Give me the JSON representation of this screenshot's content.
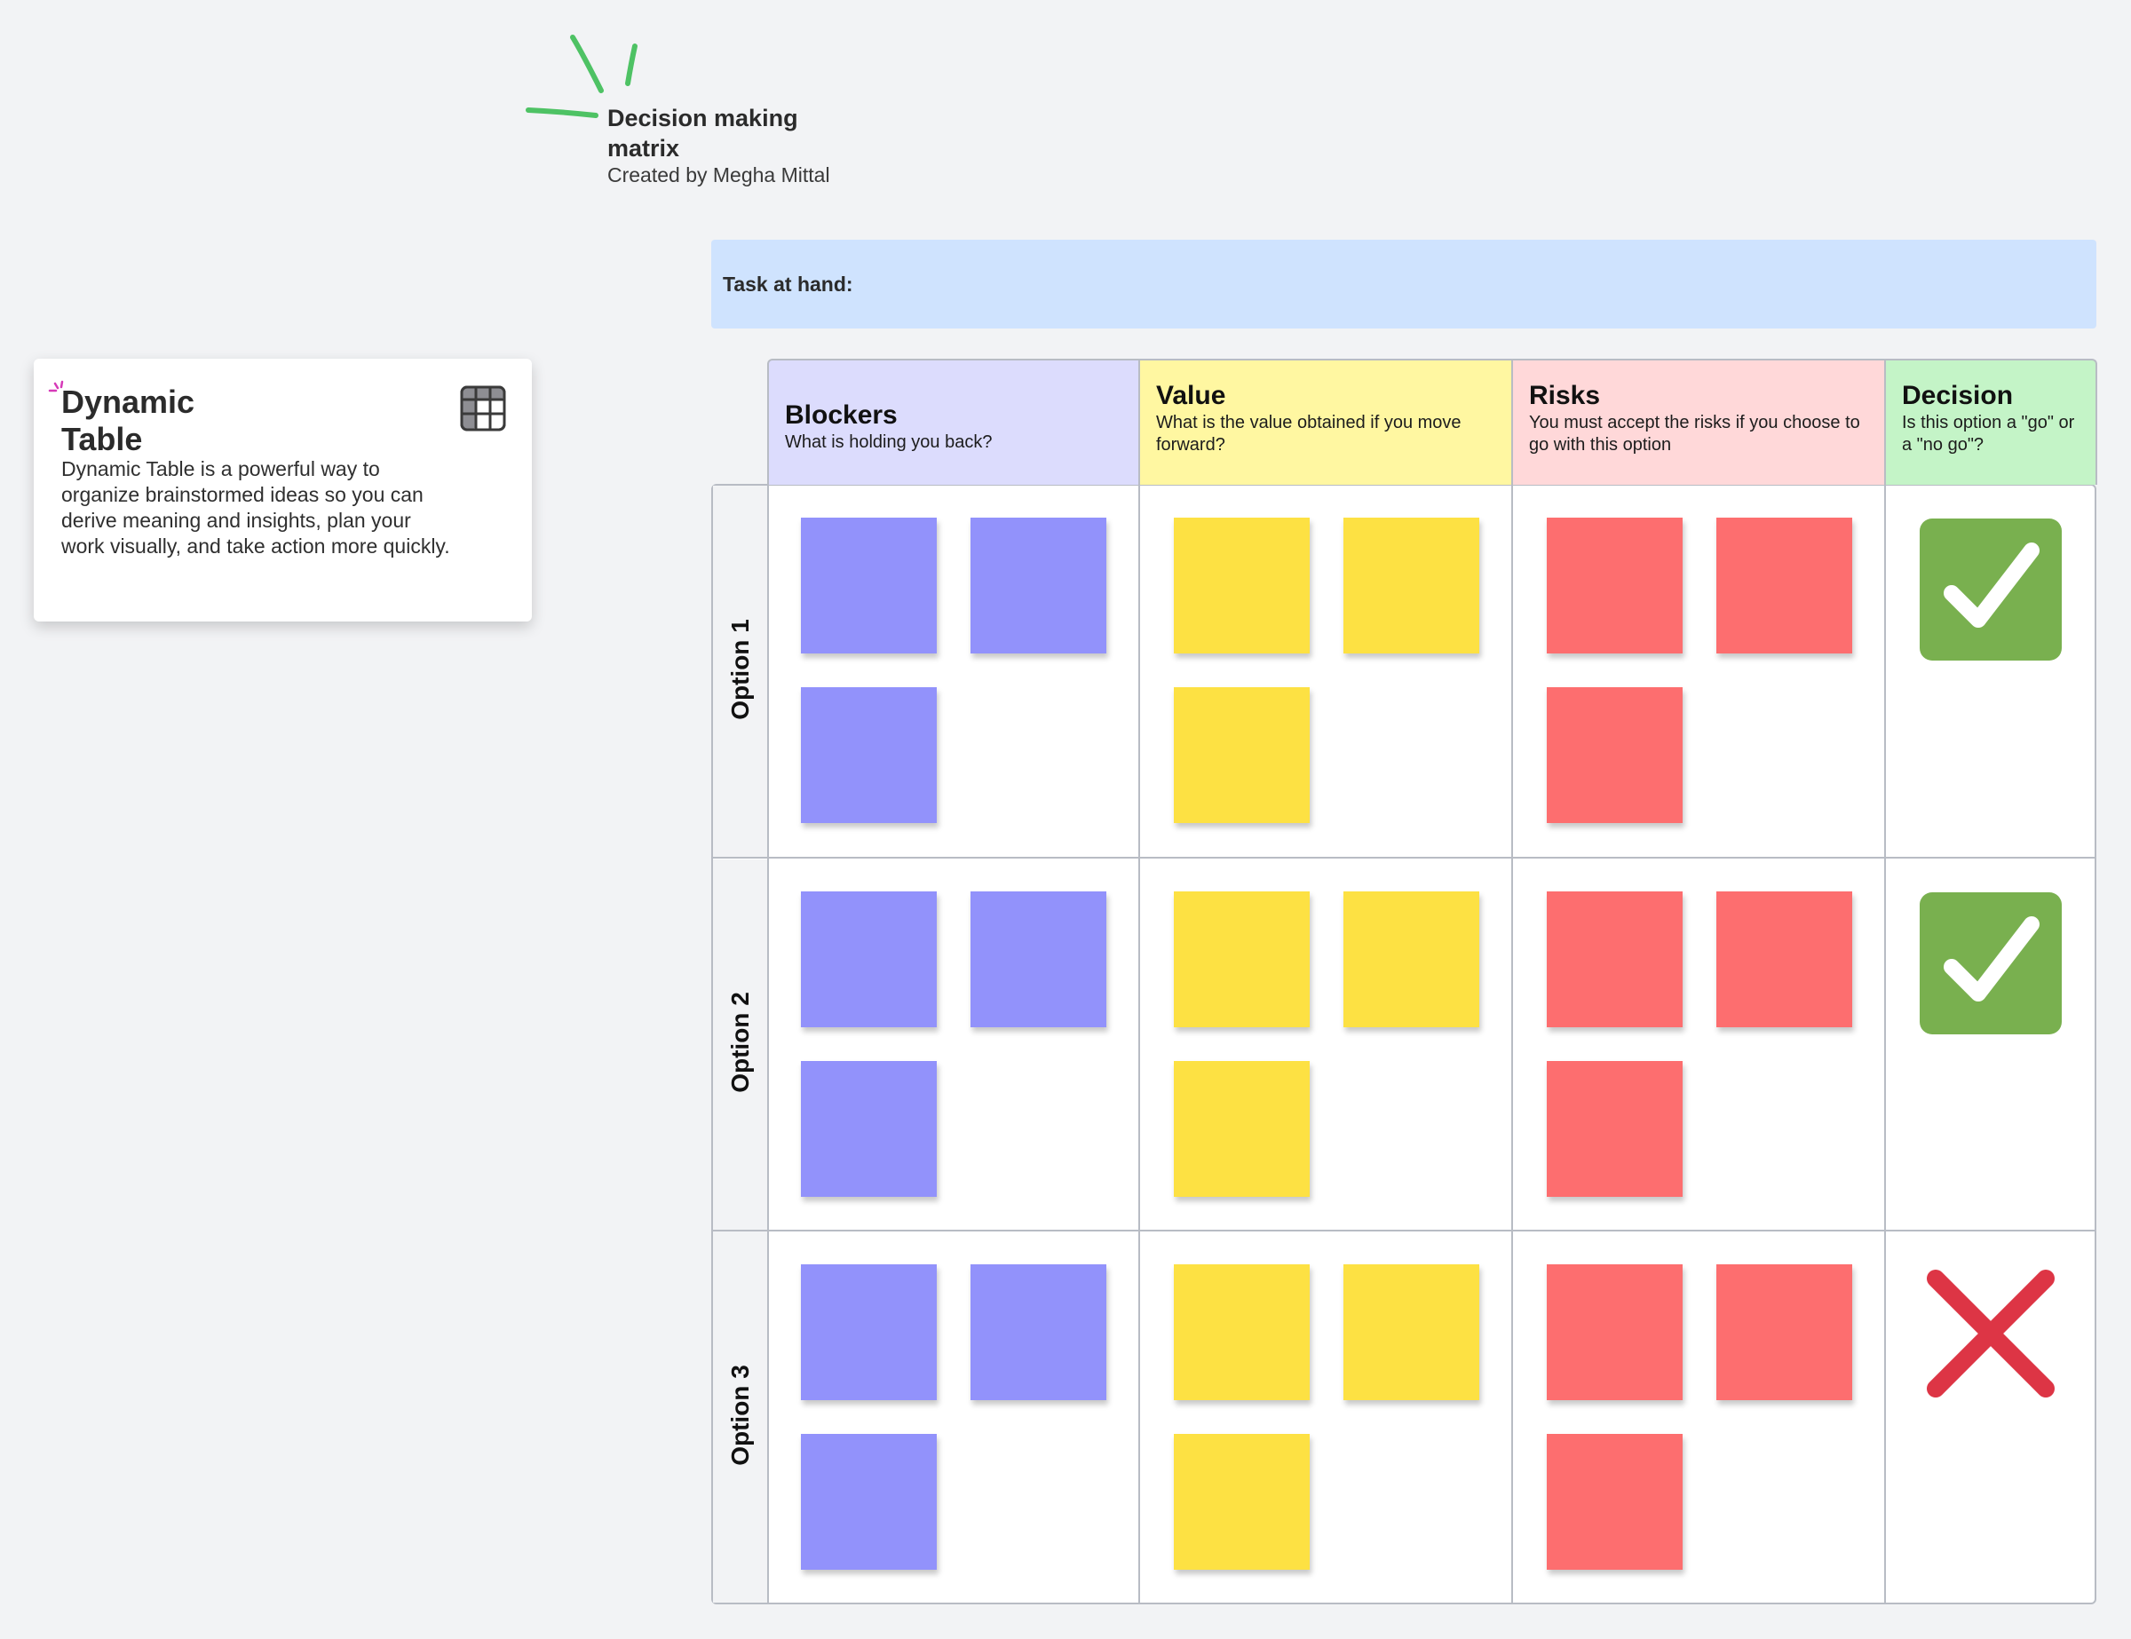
{
  "board": {
    "title": "Decision making matrix",
    "subtitle": "Created by Megha Mittal"
  },
  "info_card": {
    "title": "Dynamic Table",
    "body": "Dynamic Table is a powerful way to organize brainstormed ideas so you can derive meaning and insights, plan your work visually, and take action more quickly.",
    "icon": "table-grid-icon"
  },
  "task": {
    "label": "Task at hand:",
    "color": "#cfe3fe"
  },
  "columns": [
    {
      "title": "Blockers",
      "subtitle": "What is holding you back?",
      "color": "#dcdcfd",
      "sticky_color": "#9292fb"
    },
    {
      "title": "Value",
      "subtitle": "What is the value obtained if you move forward?",
      "color": "#fff7a1",
      "sticky_color": "#fde143"
    },
    {
      "title": "Risks",
      "subtitle": "You must accept the risks if you choose to go with this option",
      "color": "#ffd8d9",
      "sticky_color": "#fd6e6f"
    },
    {
      "title": "Decision",
      "subtitle": "Is this option a \"go\" or a \"no go\"?",
      "color": "#c4f4c7"
    }
  ],
  "rows": [
    {
      "label": "Option 1",
      "decision": "go"
    },
    {
      "label": "Option 2",
      "decision": "go"
    },
    {
      "label": "Option 3",
      "decision": "no go"
    }
  ],
  "decision_colors": {
    "go": "#79b04f",
    "no_go": "#dd3545"
  }
}
